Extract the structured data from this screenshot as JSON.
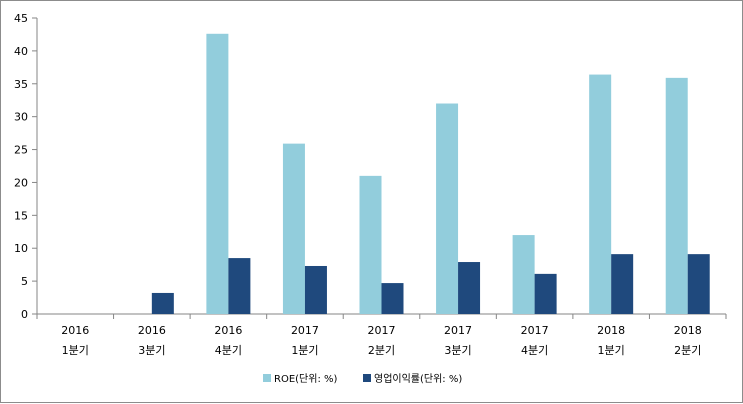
{
  "chart_data": {
    "type": "bar",
    "categories": [
      {
        "year": "2016",
        "quarter": "1분기"
      },
      {
        "year": "2016",
        "quarter": "3분기"
      },
      {
        "year": "2016",
        "quarter": "4분기"
      },
      {
        "year": "2017",
        "quarter": "1분기"
      },
      {
        "year": "2017",
        "quarter": "2분기"
      },
      {
        "year": "2017",
        "quarter": "3분기"
      },
      {
        "year": "2017",
        "quarter": "4분기"
      },
      {
        "year": "2018",
        "quarter": "1분기"
      },
      {
        "year": "2018",
        "quarter": "2분기"
      }
    ],
    "series": [
      {
        "name": "ROE(단위: %)",
        "color": "#92cddc",
        "values": [
          0,
          0,
          42.6,
          25.9,
          21.0,
          32.0,
          12.0,
          36.4,
          35.9
        ]
      },
      {
        "name": "영업이익률(단위: %)",
        "color": "#1f497d",
        "values": [
          0,
          3.2,
          8.5,
          7.3,
          4.7,
          7.9,
          6.1,
          9.1,
          9.1
        ]
      }
    ],
    "yticks": [
      "0",
      "5",
      "10",
      "15",
      "20",
      "25",
      "30",
      "35",
      "40",
      "45"
    ],
    "ylim": [
      0,
      45
    ],
    "grid": false,
    "legend_position": "bottom"
  }
}
